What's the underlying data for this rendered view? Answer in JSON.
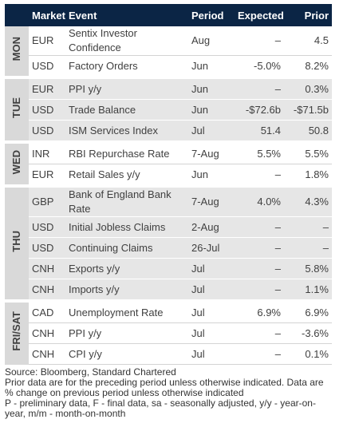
{
  "header": {
    "columns": [
      "Market",
      "Event",
      "Period",
      "Expected",
      "Prior"
    ]
  },
  "groups": [
    {
      "day": "MON",
      "rows": [
        [
          "EUR",
          "Sentix Investor Confidence",
          "Aug",
          "–",
          "4.5"
        ],
        [
          "USD",
          "Factory Orders",
          "Jun",
          "-5.0%",
          "8.2%"
        ]
      ]
    },
    {
      "day": "TUE",
      "rows": [
        [
          "EUR",
          "PPI y/y",
          "Jun",
          "–",
          "0.3%"
        ],
        [
          "USD",
          "Trade Balance",
          "Jun",
          "-$72.6b",
          "-$71.5b"
        ],
        [
          "USD",
          "ISM Services Index",
          "Jul",
          "51.4",
          "50.8"
        ]
      ]
    },
    {
      "day": "WED",
      "rows": [
        [
          "INR",
          "RBI Repurchase Rate",
          "7-Aug",
          "5.5%",
          "5.5%"
        ],
        [
          "EUR",
          "Retail Sales y/y",
          "Jun",
          "–",
          "1.8%"
        ]
      ]
    },
    {
      "day": "THU",
      "rows": [
        [
          "GBP",
          "Bank of England Bank Rate",
          "7-Aug",
          "4.0%",
          "4.3%"
        ],
        [
          "USD",
          "Initial Jobless Claims",
          "2-Aug",
          "–",
          "–"
        ],
        [
          "USD",
          "Continuing Claims",
          "26-Jul",
          "–",
          "–"
        ],
        [
          "CNH",
          "Exports y/y",
          "Jul",
          "–",
          "5.8%"
        ],
        [
          "CNH",
          "Imports y/y",
          "Jul",
          "–",
          "1.1%"
        ]
      ]
    },
    {
      "day": "FRI/SAT",
      "rows": [
        [
          "CAD",
          "Unemployment Rate",
          "Jul",
          "6.9%",
          "6.9%"
        ],
        [
          "CNH",
          "PPI y/y",
          "Jul",
          "–",
          "-3.6%"
        ],
        [
          "CNH",
          "CPI y/y",
          "Jul",
          "–",
          "0.1%"
        ]
      ]
    }
  ],
  "footnotes": [
    "Source: Bloomberg, Standard Chartered",
    "Prior data are for the preceding period unless otherwise indicated. Data are % change on previous period unless otherwise indicated",
    "P - preliminary data, F - final data, sa - seasonally adjusted, y/y - year-on-year, m/m - month-on-month"
  ]
}
